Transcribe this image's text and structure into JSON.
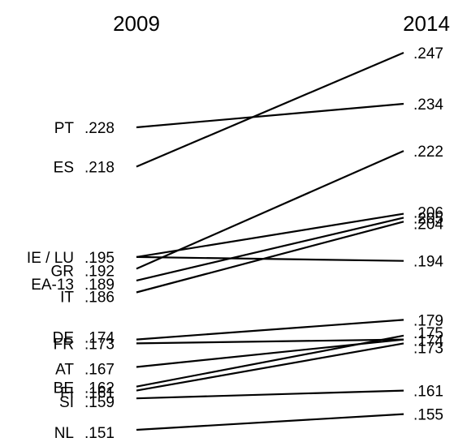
{
  "chart_data": {
    "type": "slope",
    "title": "",
    "columns": [
      "2009",
      "2014"
    ],
    "series": [
      {
        "name": "PT",
        "label": "PT",
        "v2009": 0.228,
        "v2014": 0.234,
        "l2009": ".228",
        "l2014": ".234"
      },
      {
        "name": "ES",
        "label": "ES",
        "v2009": 0.218,
        "v2014": 0.247,
        "l2009": ".218",
        "l2014": ".247"
      },
      {
        "name": "IE",
        "label": "IE / LU",
        "v2009": 0.195,
        "v2014": 0.206,
        "l2009": ".195",
        "l2014": ".206"
      },
      {
        "name": "LU",
        "label": "",
        "v2009": 0.195,
        "v2014": 0.194,
        "l2009": "",
        "l2014": ".194"
      },
      {
        "name": "GR",
        "label": "GR",
        "v2009": 0.192,
        "v2014": 0.222,
        "l2009": ".192",
        "l2014": ".222"
      },
      {
        "name": "EA-13",
        "label": "EA-13",
        "v2009": 0.189,
        "v2014": 0.205,
        "l2009": ".189",
        "l2014": ".205"
      },
      {
        "name": "IT",
        "label": "IT",
        "v2009": 0.186,
        "v2014": 0.204,
        "l2009": ".186",
        "l2014": ".204"
      },
      {
        "name": "DE",
        "label": "DE",
        "v2009": 0.174,
        "v2014": 0.179,
        "l2009": ".174",
        "l2014": ".179"
      },
      {
        "name": "FR",
        "label": "FR",
        "v2009": 0.173,
        "v2014": 0.174,
        "l2009": ".173",
        "l2014": ".174"
      },
      {
        "name": "AT",
        "label": "AT",
        "v2009": 0.167,
        "v2014": 0.174,
        "l2009": ".167",
        "l2014": ""
      },
      {
        "name": "BE",
        "label": "BE",
        "v2009": 0.162,
        "v2014": 0.175,
        "l2009": ".162",
        "l2014": ".175"
      },
      {
        "name": "FI",
        "label": "FI",
        "v2009": 0.161,
        "v2014": 0.173,
        "l2009": ".161",
        "l2014": ".173"
      },
      {
        "name": "SI",
        "label": "SI",
        "v2009": 0.159,
        "v2014": 0.161,
        "l2009": ".159",
        "l2014": ".161"
      },
      {
        "name": "NL",
        "label": "NL",
        "v2009": 0.151,
        "v2014": 0.155,
        "l2009": ".151",
        "l2014": ".155"
      }
    ]
  }
}
